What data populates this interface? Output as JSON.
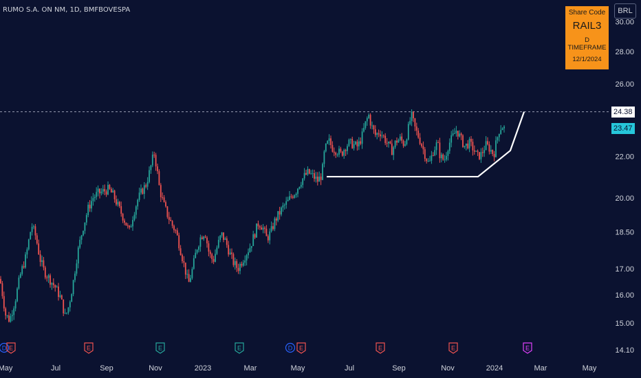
{
  "header": {
    "title": "RUMO S.A. ON NM, 1D, BMFBOVESPA"
  },
  "info_box": {
    "line1": "Share Code",
    "line2": "RAIL3",
    "line3": "D TIMEFRAME",
    "line4": "12/1/2024",
    "color": "#f7931a"
  },
  "currency_button": "BRL",
  "colors": {
    "background": "#0b1230",
    "up": "#26a69a",
    "down": "#ef5350",
    "pattern_line": "#ffffff",
    "last_price_label": "#26c6da",
    "earnings": "#ef5350",
    "dividend": "#2962ff",
    "earnings_green": "#26a69a",
    "future_event": "#e040fb"
  },
  "chart_data": {
    "type": "candlestick",
    "title": "RUMO S.A. ON NM, 1D, BMFBOVESPA",
    "y_scale": "log",
    "y_ticks": [
      "30.00",
      "28.00",
      "26.00",
      "22.00",
      "20.00",
      "18.50",
      "17.00",
      "16.00",
      "15.00",
      "14.10"
    ],
    "x_ticks": [
      "May",
      "Jul",
      "Sep",
      "Nov",
      "2023",
      "Mar",
      "May",
      "Jul",
      "Sep",
      "Nov",
      "2024",
      "Mar",
      "May"
    ],
    "price_labels": {
      "horizontal_line": "24.38",
      "last_price": "23.47"
    },
    "event_markers": [
      {
        "label": "D",
        "kind": "dividend"
      },
      {
        "label": "E",
        "kind": "earnings"
      },
      {
        "label": "E",
        "kind": "earnings"
      },
      {
        "label": "E",
        "kind": "earnings_green"
      },
      {
        "label": "E",
        "kind": "earnings_green"
      },
      {
        "label": "D",
        "kind": "dividend"
      },
      {
        "label": "E",
        "kind": "earnings"
      },
      {
        "label": "E",
        "kind": "earnings"
      },
      {
        "label": "E",
        "kind": "earnings"
      },
      {
        "label": "E",
        "kind": "future_event"
      }
    ],
    "price_path_anchors": [
      [
        0,
        16.6
      ],
      [
        8,
        15.3
      ],
      [
        14,
        15.1
      ],
      [
        22,
        15.8
      ],
      [
        30,
        16.8
      ],
      [
        38,
        17.5
      ],
      [
        46,
        18.8
      ],
      [
        52,
        18.3
      ],
      [
        58,
        17.4
      ],
      [
        64,
        16.9
      ],
      [
        72,
        16.6
      ],
      [
        80,
        16.3
      ],
      [
        88,
        15.9
      ],
      [
        95,
        15.2
      ],
      [
        100,
        15.6
      ],
      [
        106,
        16.4
      ],
      [
        112,
        17.5
      ],
      [
        120,
        18.6
      ],
      [
        128,
        19.5
      ],
      [
        135,
        20.0
      ],
      [
        142,
        20.2
      ],
      [
        150,
        20.3
      ],
      [
        158,
        20.4
      ],
      [
        165,
        20.1
      ],
      [
        172,
        19.6
      ],
      [
        178,
        19.2
      ],
      [
        184,
        18.8
      ],
      [
        188,
        18.5
      ],
      [
        194,
        19.3
      ],
      [
        200,
        19.9
      ],
      [
        206,
        20.3
      ],
      [
        212,
        20.6
      ],
      [
        218,
        21.3
      ],
      [
        224,
        22.2
      ],
      [
        228,
        21.4
      ],
      [
        232,
        20.4
      ],
      [
        238,
        19.7
      ],
      [
        244,
        19.2
      ],
      [
        250,
        18.8
      ],
      [
        256,
        18.5
      ],
      [
        262,
        17.8
      ],
      [
        268,
        17.1
      ],
      [
        274,
        16.4
      ],
      [
        280,
        17.0
      ],
      [
        286,
        17.8
      ],
      [
        292,
        18.3
      ],
      [
        298,
        18.5
      ],
      [
        304,
        17.6
      ],
      [
        310,
        17.3
      ],
      [
        316,
        17.9
      ],
      [
        322,
        18.4
      ],
      [
        328,
        18.1
      ],
      [
        334,
        17.6
      ],
      [
        340,
        17.2
      ],
      [
        346,
        17.0
      ],
      [
        352,
        17.3
      ],
      [
        358,
        17.6
      ],
      [
        364,
        17.9
      ],
      [
        370,
        18.4
      ],
      [
        376,
        18.9
      ],
      [
        382,
        18.7
      ],
      [
        388,
        18.2
      ],
      [
        394,
        18.5
      ],
      [
        400,
        19.0
      ],
      [
        406,
        19.3
      ],
      [
        412,
        19.6
      ],
      [
        418,
        19.8
      ],
      [
        424,
        20.1
      ],
      [
        430,
        20.3
      ],
      [
        436,
        20.7
      ],
      [
        442,
        21.0
      ],
      [
        448,
        21.2
      ],
      [
        456,
        21.0
      ],
      [
        462,
        20.8
      ],
      [
        468,
        21.1
      ],
      [
        472,
        22.3
      ],
      [
        478,
        22.8
      ],
      [
        484,
        22.4
      ],
      [
        490,
        22.3
      ],
      [
        496,
        22.1
      ],
      [
        502,
        22.5
      ],
      [
        508,
        22.7
      ],
      [
        514,
        22.6
      ],
      [
        520,
        22.5
      ],
      [
        526,
        23.0
      ],
      [
        532,
        23.8
      ],
      [
        536,
        24.2
      ],
      [
        540,
        23.6
      ],
      [
        546,
        23.1
      ],
      [
        552,
        23.3
      ],
      [
        558,
        23.0
      ],
      [
        564,
        22.6
      ],
      [
        570,
        22.3
      ],
      [
        576,
        22.8
      ],
      [
        582,
        22.9
      ],
      [
        588,
        22.6
      ],
      [
        594,
        23.5
      ],
      [
        598,
        24.2
      ],
      [
        604,
        23.4
      ],
      [
        610,
        22.9
      ],
      [
        616,
        22.3
      ],
      [
        620,
        21.9
      ],
      [
        624,
        21.6
      ],
      [
        630,
        22.3
      ],
      [
        636,
        22.7
      ],
      [
        640,
        22.0
      ],
      [
        646,
        21.8
      ],
      [
        652,
        22.6
      ],
      [
        658,
        23.0
      ],
      [
        664,
        23.4
      ],
      [
        670,
        22.9
      ],
      [
        676,
        22.5
      ],
      [
        682,
        22.7
      ],
      [
        688,
        22.4
      ],
      [
        694,
        22.0
      ],
      [
        700,
        22.1
      ],
      [
        706,
        22.6
      ],
      [
        712,
        22.4
      ],
      [
        718,
        22.1
      ],
      [
        722,
        22.8
      ],
      [
        726,
        23.4
      ],
      [
        730,
        23.6
      ],
      [
        733,
        23.47
      ]
    ],
    "pattern_line_points": [
      [
        475,
        21.0
      ],
      [
        695,
        21.0
      ],
      [
        742,
        22.3
      ],
      [
        762,
        24.38
      ]
    ],
    "dashed_level": 24.38
  }
}
